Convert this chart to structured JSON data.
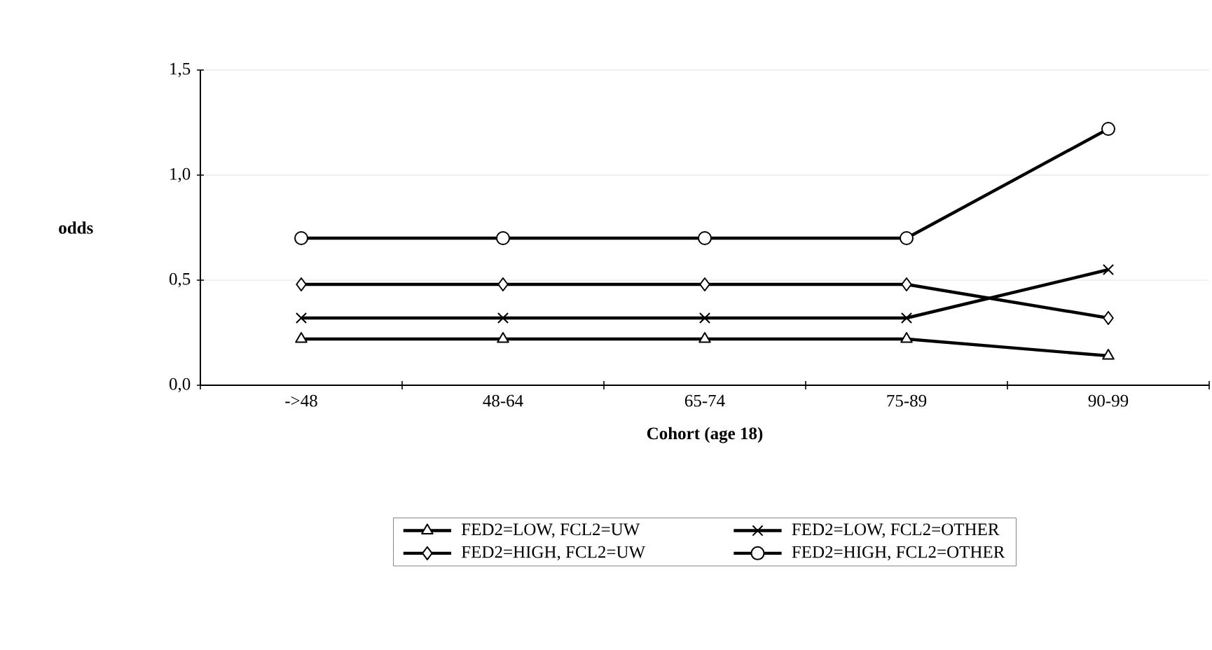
{
  "chart_data": {
    "type": "line",
    "xlabel": "Cohort (age 18)",
    "ylabel": "odds",
    "categories": [
      "->48",
      "48-64",
      "65-74",
      "75-89",
      "90-99"
    ],
    "ylim": [
      0,
      1.5
    ],
    "yticks": [
      {
        "value": 0,
        "label": "0,0"
      },
      {
        "value": 0.5,
        "label": "0,5"
      },
      {
        "value": 1.0,
        "label": "1,0"
      },
      {
        "value": 1.5,
        "label": "1,5"
      }
    ],
    "grid": "y",
    "legend": "bottom",
    "line_style": "solid",
    "series": [
      {
        "name": "FED2=LOW, FCL2=UW",
        "color": "#000000",
        "marker": "triangle",
        "values": [
          0.22,
          0.22,
          0.22,
          0.22,
          0.14
        ]
      },
      {
        "name": "FED2=LOW, FCL2=OTHER",
        "color": "#000000",
        "marker": "cross",
        "values": [
          0.32,
          0.32,
          0.32,
          0.32,
          0.55
        ]
      },
      {
        "name": "FED2=HIGH, FCL2=UW",
        "color": "#000000",
        "marker": "diamond",
        "values": [
          0.48,
          0.48,
          0.48,
          0.48,
          0.32
        ]
      },
      {
        "name": "FED2=HIGH, FCL2=OTHER",
        "color": "#000000",
        "marker": "circle",
        "values": [
          0.7,
          0.7,
          0.7,
          0.7,
          1.22
        ]
      }
    ]
  }
}
